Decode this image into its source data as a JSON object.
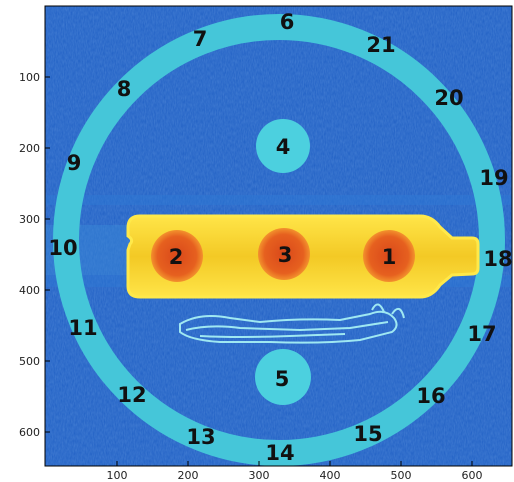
{
  "image": {
    "colors": {
      "background": "#1f5fc4",
      "ring": "#45c6d9",
      "insert": "#4cd0df",
      "bottle": "#f4d02a",
      "bottle_edge": "#ffe94a",
      "insert_hot": "#e2571c",
      "insert_hot_edge": "#f08a2c",
      "artifact": "#9fe8f2"
    },
    "x_ticks": [
      "100",
      "200",
      "300",
      "400",
      "500",
      "600"
    ],
    "y_ticks": [
      "100",
      "200",
      "300",
      "400",
      "500",
      "600"
    ],
    "roi_labels": [
      "1",
      "2",
      "3",
      "4",
      "5",
      "6",
      "7",
      "8",
      "9",
      "10",
      "11",
      "12",
      "13",
      "14",
      "15",
      "16",
      "17",
      "18",
      "19",
      "20",
      "21"
    ]
  }
}
